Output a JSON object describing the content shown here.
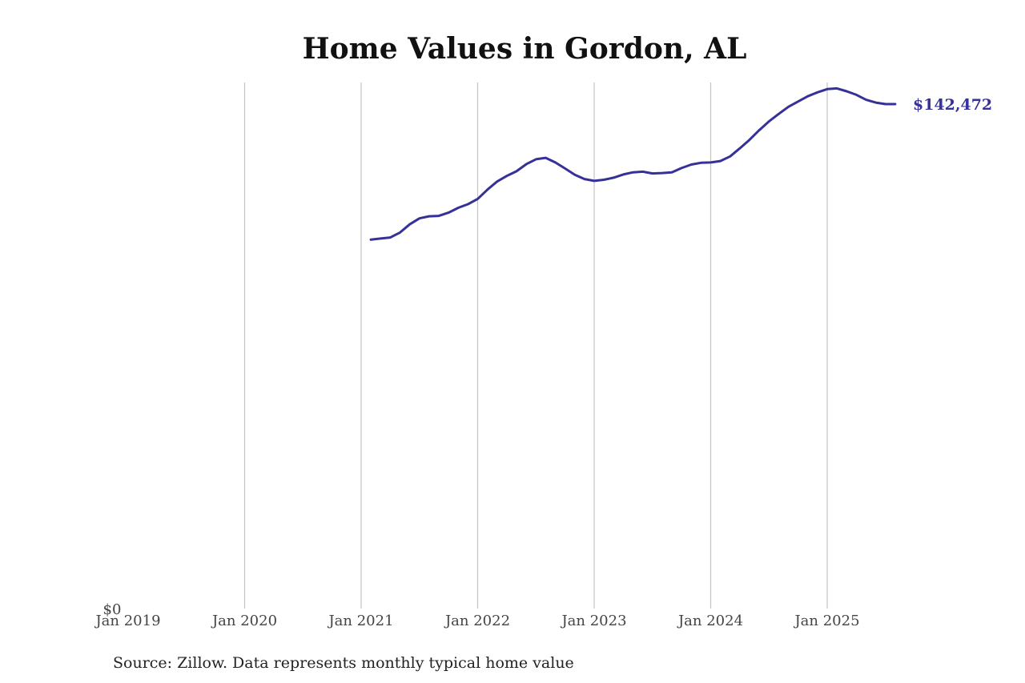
{
  "chart_data": {
    "type": "line",
    "title": "Home Values in Gordon, AL",
    "xlabel": "",
    "ylabel": "",
    "x_ticks": [
      "Jan 2019",
      "Jan 2020",
      "Jan 2021",
      "Jan 2022",
      "Jan 2023",
      "Jan 2024",
      "Jan 2025"
    ],
    "y_ticks": [
      "$0"
    ],
    "ylim": [
      0,
      147000
    ],
    "xlim": [
      "2019-01",
      "2025-12"
    ],
    "grid": "vertical",
    "series": [
      {
        "color": "#353198",
        "x": [
          "2021-02",
          "2021-03",
          "2021-04",
          "2021-05",
          "2021-06",
          "2021-07",
          "2021-08",
          "2021-09",
          "2021-10",
          "2021-11",
          "2021-12",
          "2022-01",
          "2022-02",
          "2022-03",
          "2022-04",
          "2022-05",
          "2022-06",
          "2022-07",
          "2022-08",
          "2022-09",
          "2022-10",
          "2022-11",
          "2022-12",
          "2023-01",
          "2023-02",
          "2023-03",
          "2023-04",
          "2023-05",
          "2023-06",
          "2023-07",
          "2023-08",
          "2023-09",
          "2023-10",
          "2023-11",
          "2023-12",
          "2024-01",
          "2024-02",
          "2024-03",
          "2024-04",
          "2024-05",
          "2024-06",
          "2024-07",
          "2024-08",
          "2024-09",
          "2024-10",
          "2024-11",
          "2024-12",
          "2025-01",
          "2025-02",
          "2025-03",
          "2025-04",
          "2025-05",
          "2025-06",
          "2025-07",
          "2025-08"
        ],
        "values": [
          104200,
          104500,
          104800,
          106200,
          108500,
          110200,
          110800,
          110900,
          111800,
          113200,
          114200,
          115700,
          118300,
          120600,
          122200,
          123500,
          125500,
          126900,
          127300,
          126000,
          124300,
          122500,
          121300,
          120800,
          121100,
          121700,
          122600,
          123200,
          123400,
          122900,
          123000,
          123200,
          124400,
          125400,
          125900,
          126000,
          126400,
          127700,
          130000,
          132400,
          135100,
          137600,
          139700,
          141700,
          143200,
          144700,
          145800,
          146700,
          146900,
          146100,
          145100,
          143700,
          142900,
          142472,
          142472
        ]
      }
    ],
    "end_label": "$142,472",
    "source": "Source: Zillow. Data represents monthly typical home value"
  }
}
